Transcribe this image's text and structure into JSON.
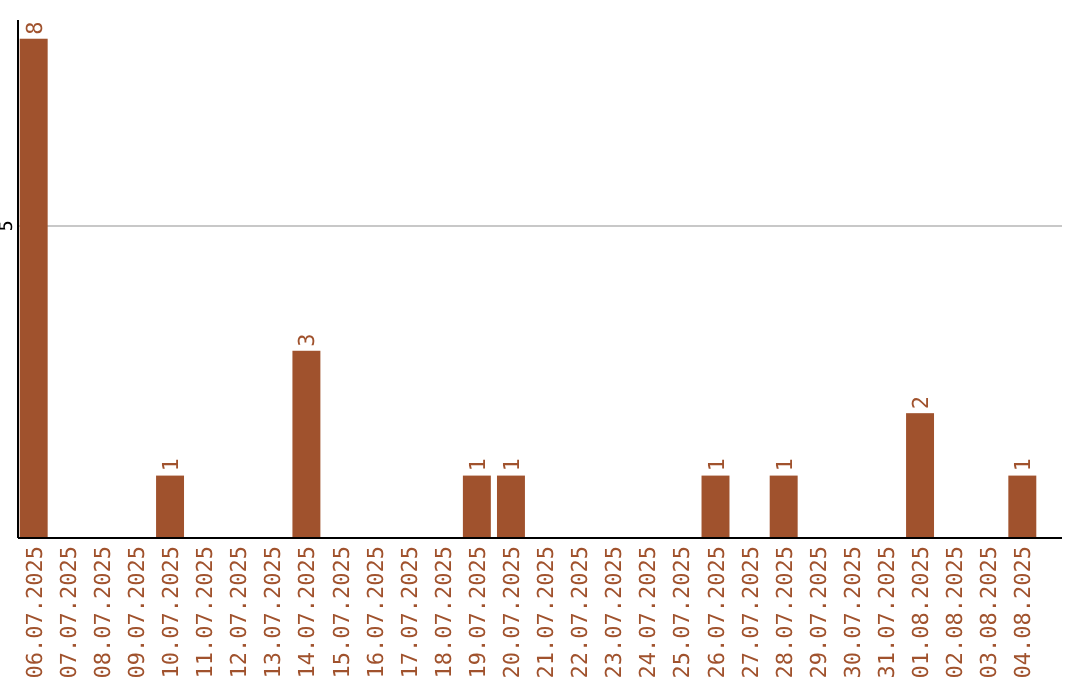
{
  "chart_data": {
    "type": "bar",
    "categories": [
      "06.07.2025",
      "07.07.2025",
      "08.07.2025",
      "09.07.2025",
      "10.07.2025",
      "11.07.2025",
      "12.07.2025",
      "13.07.2025",
      "14.07.2025",
      "15.07.2025",
      "16.07.2025",
      "17.07.2025",
      "18.07.2025",
      "19.07.2025",
      "20.07.2025",
      "21.07.2025",
      "22.07.2025",
      "23.07.2025",
      "24.07.2025",
      "25.07.2025",
      "26.07.2025",
      "27.07.2025",
      "28.07.2025",
      "29.07.2025",
      "30.07.2025",
      "31.07.2025",
      "01.08.2025",
      "02.08.2025",
      "03.08.2025",
      "04.08.2025"
    ],
    "values": [
      8,
      0,
      0,
      0,
      1,
      0,
      0,
      0,
      3,
      0,
      0,
      0,
      0,
      1,
      1,
      0,
      0,
      0,
      0,
      0,
      1,
      0,
      1,
      0,
      0,
      0,
      2,
      0,
      0,
      1
    ],
    "value_labels": [
      "8",
      null,
      null,
      null,
      "1",
      null,
      null,
      null,
      "3",
      null,
      null,
      null,
      null,
      "1",
      "1",
      null,
      null,
      null,
      null,
      null,
      "1",
      null,
      "1",
      null,
      null,
      null,
      "2",
      null,
      null,
      "1"
    ],
    "color": "#a0522d",
    "ylim": [
      0,
      8.3
    ],
    "yticks": [
      5
    ],
    "grid": "y"
  }
}
